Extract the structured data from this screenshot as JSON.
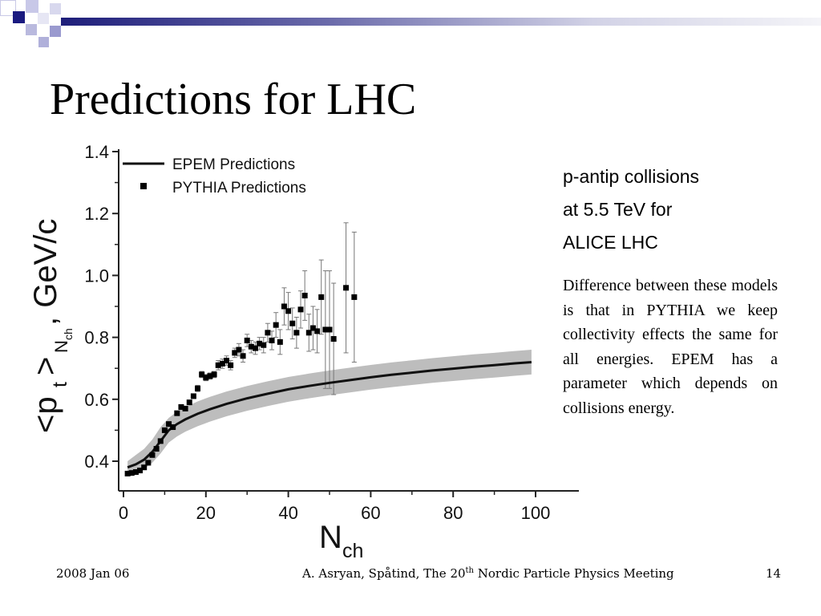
{
  "slide": {
    "title": "Predictions for LHC",
    "side_heading_lines": [
      "p-antip collisions",
      "at 5.5 TeV for",
      "ALICE LHC"
    ],
    "side_text": "Difference between these models is that in PYTHIA we keep collectivity effects the same for all energies. EPEM has a parameter which depends on collisions energy.",
    "footer": {
      "date": "2008 Jan 06",
      "meeting_prefix": "A. Asryan, Spåtind, The 20",
      "meeting_sup": "th",
      "meeting_suffix": " Nordic Particle Physics Meeting",
      "page": "14"
    },
    "colors": {
      "accent": "#2b2b8c",
      "band": "#bdbdbd"
    }
  },
  "chart_data": {
    "type": "scatter",
    "xlabel_main": "N",
    "xlabel_sub": "ch",
    "ylabel_main": "<p",
    "ylabel_sub_t": "t",
    "ylabel_close": ">",
    "ylabel_sub_n": "N",
    "ylabel_sub_ch": "ch",
    "ylabel_unit": ", GeV/c",
    "xlim": [
      0,
      110
    ],
    "ylim": [
      0.32,
      1.42
    ],
    "xticks": [
      "0",
      "20",
      "40",
      "60",
      "80",
      "100"
    ],
    "xtick_values": [
      0,
      20,
      40,
      60,
      80,
      100
    ],
    "yticks": [
      "0.4",
      "0.6",
      "0.8",
      "1.0",
      "1.2",
      "1.4"
    ],
    "ytick_values": [
      0.4,
      0.6,
      0.8,
      1.0,
      1.2,
      1.4
    ],
    "legend_position": "top-left",
    "series": [
      {
        "name": "EPEM Predictions",
        "kind": "line",
        "x": [
          1,
          3,
          5,
          7,
          9,
          11,
          13,
          15,
          18,
          21,
          25,
          30,
          35,
          40,
          45,
          50,
          55,
          60,
          65,
          70,
          75,
          80,
          85,
          90,
          95,
          99
        ],
        "y": [
          0.38,
          0.39,
          0.405,
          0.43,
          0.465,
          0.5,
          0.52,
          0.535,
          0.553,
          0.568,
          0.585,
          0.603,
          0.618,
          0.632,
          0.643,
          0.653,
          0.662,
          0.671,
          0.679,
          0.686,
          0.693,
          0.699,
          0.705,
          0.71,
          0.716,
          0.72
        ],
        "band_upper": [
          0.4,
          0.42,
          0.44,
          0.47,
          0.51,
          0.54,
          0.56,
          0.575,
          0.593,
          0.608,
          0.625,
          0.643,
          0.658,
          0.672,
          0.683,
          0.693,
          0.702,
          0.711,
          0.719,
          0.726,
          0.733,
          0.739,
          0.745,
          0.75,
          0.756,
          0.76
        ],
        "band_lower": [
          0.36,
          0.365,
          0.375,
          0.395,
          0.425,
          0.46,
          0.48,
          0.495,
          0.513,
          0.528,
          0.545,
          0.563,
          0.578,
          0.592,
          0.603,
          0.613,
          0.622,
          0.631,
          0.639,
          0.646,
          0.653,
          0.659,
          0.665,
          0.67,
          0.676,
          0.68
        ]
      },
      {
        "name": "PYTHIA Predictions",
        "kind": "points",
        "points": [
          {
            "x": 1,
            "y": 0.36,
            "e": 0
          },
          {
            "x": 2,
            "y": 0.362,
            "e": 0
          },
          {
            "x": 3,
            "y": 0.365,
            "e": 0
          },
          {
            "x": 4,
            "y": 0.37,
            "e": 0
          },
          {
            "x": 5,
            "y": 0.38,
            "e": 0
          },
          {
            "x": 6,
            "y": 0.395,
            "e": 0
          },
          {
            "x": 7,
            "y": 0.42,
            "e": 0
          },
          {
            "x": 8,
            "y": 0.44,
            "e": 0
          },
          {
            "x": 9,
            "y": 0.465,
            "e": 0
          },
          {
            "x": 10,
            "y": 0.5,
            "e": 0
          },
          {
            "x": 11,
            "y": 0.52,
            "e": 0
          },
          {
            "x": 12,
            "y": 0.51,
            "e": 0
          },
          {
            "x": 13,
            "y": 0.555,
            "e": 0
          },
          {
            "x": 14,
            "y": 0.575,
            "e": 0
          },
          {
            "x": 15,
            "y": 0.57,
            "e": 0
          },
          {
            "x": 16,
            "y": 0.59,
            "e": 0
          },
          {
            "x": 17,
            "y": 0.61,
            "e": 0
          },
          {
            "x": 18,
            "y": 0.635,
            "e": 0.01
          },
          {
            "x": 19,
            "y": 0.68,
            "e": 0.01
          },
          {
            "x": 20,
            "y": 0.67,
            "e": 0.01
          },
          {
            "x": 21,
            "y": 0.675,
            "e": 0.01
          },
          {
            "x": 22,
            "y": 0.68,
            "e": 0.01
          },
          {
            "x": 23,
            "y": 0.71,
            "e": 0.015
          },
          {
            "x": 24,
            "y": 0.715,
            "e": 0.015
          },
          {
            "x": 25,
            "y": 0.725,
            "e": 0.015
          },
          {
            "x": 26,
            "y": 0.71,
            "e": 0.015
          },
          {
            "x": 27,
            "y": 0.75,
            "e": 0.015
          },
          {
            "x": 28,
            "y": 0.76,
            "e": 0.02
          },
          {
            "x": 29,
            "y": 0.74,
            "e": 0.02
          },
          {
            "x": 30,
            "y": 0.79,
            "e": 0.02
          },
          {
            "x": 31,
            "y": 0.77,
            "e": 0.02
          },
          {
            "x": 32,
            "y": 0.765,
            "e": 0.02
          },
          {
            "x": 33,
            "y": 0.78,
            "e": 0.02
          },
          {
            "x": 34,
            "y": 0.775,
            "e": 0.025
          },
          {
            "x": 35,
            "y": 0.815,
            "e": 0.03
          },
          {
            "x": 36,
            "y": 0.79,
            "e": 0.03
          },
          {
            "x": 37,
            "y": 0.84,
            "e": 0.04
          },
          {
            "x": 38,
            "y": 0.785,
            "e": 0.04
          },
          {
            "x": 39,
            "y": 0.9,
            "e": 0.06
          },
          {
            "x": 40,
            "y": 0.885,
            "e": 0.06
          },
          {
            "x": 41,
            "y": 0.845,
            "e": 0.05
          },
          {
            "x": 42,
            "y": 0.815,
            "e": 0.05
          },
          {
            "x": 43,
            "y": 0.89,
            "e": 0.06
          },
          {
            "x": 44,
            "y": 0.935,
            "e": 0.08
          },
          {
            "x": 45,
            "y": 0.815,
            "e": 0.06
          },
          {
            "x": 46,
            "y": 0.83,
            "e": 0.07
          },
          {
            "x": 47,
            "y": 0.82,
            "e": 0.07
          },
          {
            "x": 48,
            "y": 0.93,
            "e": 0.12
          },
          {
            "x": 49,
            "y": 0.825,
            "e": 0.19
          },
          {
            "x": 50,
            "y": 0.825,
            "e": 0.19
          },
          {
            "x": 51,
            "y": 0.795,
            "e": 0.18
          },
          {
            "x": 54,
            "y": 0.96,
            "e": 0.21
          },
          {
            "x": 56,
            "y": 0.93,
            "e": 0.21
          }
        ]
      }
    ]
  }
}
